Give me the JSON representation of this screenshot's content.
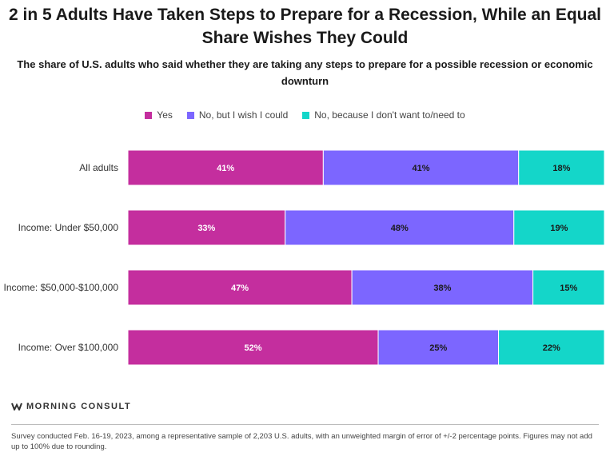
{
  "chart_data": {
    "type": "bar",
    "orientation": "horizontal",
    "stacked": true,
    "title": "2 in 5 Adults Have Taken Steps to Prepare for a Recession, While an Equal Share Wishes They Could",
    "subtitle": "The share of U.S. adults who said whether they are taking any steps to prepare for a possible recession or economic downturn",
    "categories": [
      "All adults",
      "Income: Under $50,000",
      "Income: $50,000-$100,000",
      "Income: Over $100,000"
    ],
    "series": [
      {
        "name": "Yes",
        "color": "#C42E9E",
        "values": [
          41,
          33,
          47,
          52
        ],
        "labels": [
          "41%",
          "33%",
          "47%",
          "52%"
        ]
      },
      {
        "name": "No, but I wish I could",
        "color": "#7C66FF",
        "values": [
          41,
          48,
          38,
          25
        ],
        "labels": [
          "41%",
          "48%",
          "38%",
          "25%"
        ]
      },
      {
        "name": "No, because I don't want to/need to",
        "color": "#14D6C9",
        "values": [
          18,
          19,
          15,
          22
        ],
        "labels": [
          "18%",
          "19%",
          "15%",
          "22%"
        ]
      }
    ],
    "legend": "top-center"
  },
  "brand": "MORNING CONSULT",
  "footnote": "Survey conducted Feb. 16-19, 2023, among a representative sample of 2,203 U.S. adults, with an unweighted margin of error of +/-2 percentage points. Figures may not add up to 100% due to rounding."
}
